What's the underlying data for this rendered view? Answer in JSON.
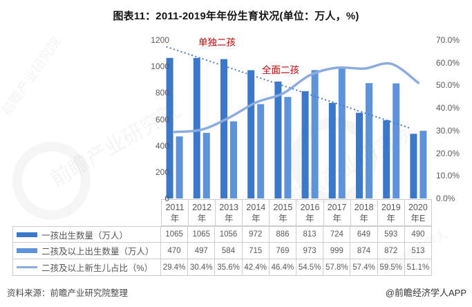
{
  "title": "图表11：2011-2019年年份生育状况(单位：万人，%)",
  "chart_data": {
    "type": "combo",
    "categories": [
      "2011年",
      "2012年",
      "2013年",
      "2014年",
      "2015年",
      "2016年",
      "2017年",
      "2018年",
      "2019年",
      "2020年E"
    ],
    "series": [
      {
        "name": "一孩出生数量（万人）",
        "type": "bar",
        "axis": "left",
        "values": [
          1065,
          1065,
          1056,
          972,
          886,
          813,
          724,
          649,
          593,
          490
        ]
      },
      {
        "name": "二孩及以上出生数量（万人）",
        "type": "bar",
        "axis": "left",
        "values": [
          470,
          497,
          584,
          715,
          769,
          973,
          999,
          874,
          872,
          513
        ]
      },
      {
        "name": "二孩及以上新生儿占比（%）",
        "type": "line",
        "axis": "right",
        "values": [
          29.4,
          30.4,
          35.6,
          42.4,
          46.4,
          54.5,
          57.8,
          57.4,
          59.5,
          51.1
        ]
      }
    ],
    "left_axis": {
      "ticks": [
        "1200",
        "1000",
        "800",
        "600",
        "400",
        "200",
        "0"
      ],
      "values": [
        1200,
        1000,
        800,
        600,
        400,
        200,
        0
      ],
      "range": [
        0,
        1200
      ]
    },
    "right_axis": {
      "ticks": [
        "70.0%",
        "60.0%",
        "50.0%",
        "40.0%",
        "30.0%",
        "20.0%",
        "10.0%",
        "0.0%"
      ],
      "values": [
        70,
        60,
        50,
        40,
        30,
        20,
        10,
        0
      ],
      "range": [
        0,
        70
      ]
    },
    "annotations": [
      {
        "text": "单独二孩"
      },
      {
        "text": "全面二孩"
      }
    ],
    "trendline": {
      "style": "dotted",
      "start_value": 1150,
      "end_value": 535
    },
    "grid": false,
    "legend_position": "table-left"
  },
  "table": {
    "rows": [
      {
        "label": "一孩出生数量（万人）",
        "swatch": "bar1",
        "swatch_height": 7,
        "values": [
          "1065",
          "1065",
          "1056",
          "972",
          "886",
          "813",
          "724",
          "649",
          "593",
          "490"
        ]
      },
      {
        "label": "二孩及以上出生数量（万人）",
        "swatch": "bar2",
        "swatch_height": 7,
        "values": [
          "470",
          "497",
          "584",
          "715",
          "769",
          "973",
          "999",
          "874",
          "872",
          "513"
        ]
      },
      {
        "label": "二孩及以上新生儿占比（%）",
        "swatch": "line",
        "swatch_height": 3,
        "values": [
          "29.4%",
          "30.4%",
          "35.6%",
          "42.4%",
          "46.4%",
          "54.5%",
          "57.8%",
          "57.4%",
          "59.5%",
          "51.1%"
        ]
      }
    ]
  },
  "footer": {
    "source": "资料来源：前瞻产业研究院整理",
    "credit": "@前瞻经济学人APP"
  },
  "watermark": {
    "text": "前瞻产业研究院",
    "text2": "前瞻经济学人"
  },
  "colors": {
    "bar1": "#3C78C9",
    "bar2": "#5E93DB",
    "line": "#8AACDF",
    "dotted": "#4577C2",
    "annotation": "#C00000",
    "border": "#CCCCCC",
    "axis_text": "#595959",
    "title_text": "#141414"
  }
}
